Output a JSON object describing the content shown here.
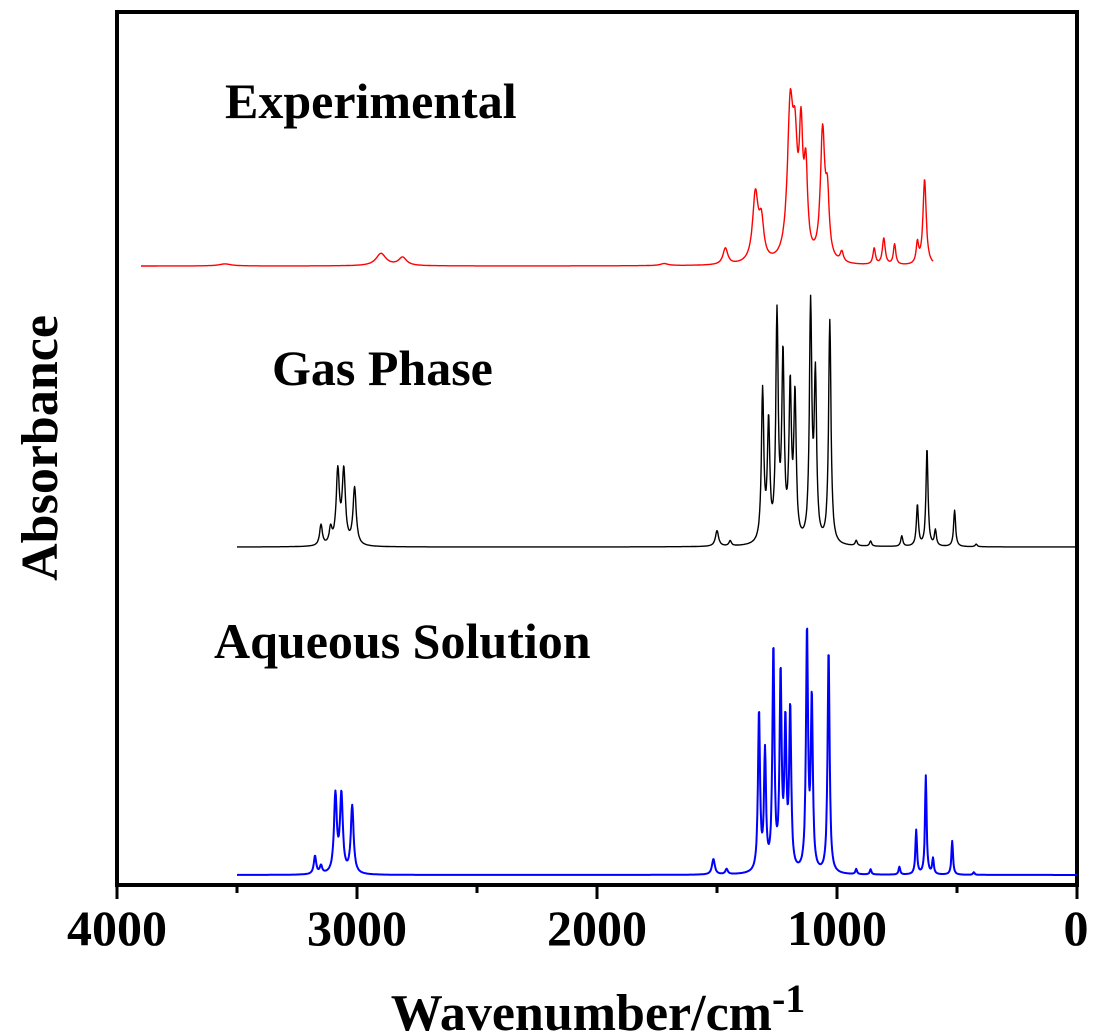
{
  "chart_data": {
    "type": "line",
    "xlabel": "Wavenumber/cm",
    "xlabel_superscript": "-1",
    "ylabel": "Absorbance",
    "xlim": [
      4000,
      0
    ],
    "x_reversed": true,
    "x_ticks": [
      4000,
      3000,
      2000,
      1000,
      0
    ],
    "x_tick_labels": [
      "4000",
      "3000",
      "2000",
      "1000",
      "0"
    ],
    "y_ticks_shown": false,
    "grid": false,
    "stacked_offset": true,
    "series": [
      {
        "name": "Experimental",
        "color": "#ff0000",
        "x_range": [
          3900,
          600
        ],
        "peaks": [
          {
            "x": 3550,
            "h": 0.01,
            "w": 30
          },
          {
            "x": 2900,
            "h": 0.06,
            "w": 25
          },
          {
            "x": 2810,
            "h": 0.04,
            "w": 20
          },
          {
            "x": 1720,
            "h": 0.01,
            "w": 20
          },
          {
            "x": 1465,
            "h": 0.08,
            "w": 12
          },
          {
            "x": 1340,
            "h": 0.33,
            "w": 14
          },
          {
            "x": 1315,
            "h": 0.18,
            "w": 12
          },
          {
            "x": 1195,
            "h": 0.7,
            "w": 14
          },
          {
            "x": 1175,
            "h": 0.45,
            "w": 12
          },
          {
            "x": 1150,
            "h": 0.55,
            "w": 9
          },
          {
            "x": 1130,
            "h": 0.4,
            "w": 9
          },
          {
            "x": 1060,
            "h": 0.62,
            "w": 11
          },
          {
            "x": 1040,
            "h": 0.28,
            "w": 9
          },
          {
            "x": 980,
            "h": 0.05,
            "w": 8
          },
          {
            "x": 845,
            "h": 0.08,
            "w": 6
          },
          {
            "x": 805,
            "h": 0.13,
            "w": 7
          },
          {
            "x": 760,
            "h": 0.1,
            "w": 6
          },
          {
            "x": 665,
            "h": 0.1,
            "w": 6
          },
          {
            "x": 635,
            "h": 0.42,
            "w": 8
          }
        ]
      },
      {
        "name": "Gas Phase",
        "color": "#000000",
        "x_range": [
          3500,
          0
        ],
        "peaks": [
          {
            "x": 3150,
            "h": 0.08,
            "w": 7
          },
          {
            "x": 3110,
            "h": 0.06,
            "w": 7
          },
          {
            "x": 3080,
            "h": 0.28,
            "w": 8
          },
          {
            "x": 3055,
            "h": 0.28,
            "w": 8
          },
          {
            "x": 3010,
            "h": 0.22,
            "w": 8
          },
          {
            "x": 1500,
            "h": 0.06,
            "w": 8
          },
          {
            "x": 1445,
            "h": 0.02,
            "w": 6
          },
          {
            "x": 1310,
            "h": 0.58,
            "w": 6
          },
          {
            "x": 1285,
            "h": 0.45,
            "w": 6
          },
          {
            "x": 1250,
            "h": 0.86,
            "w": 6
          },
          {
            "x": 1225,
            "h": 0.7,
            "w": 6
          },
          {
            "x": 1195,
            "h": 0.58,
            "w": 6
          },
          {
            "x": 1175,
            "h": 0.55,
            "w": 6
          },
          {
            "x": 1110,
            "h": 0.9,
            "w": 6
          },
          {
            "x": 1090,
            "h": 0.62,
            "w": 6
          },
          {
            "x": 1030,
            "h": 0.86,
            "w": 6
          },
          {
            "x": 920,
            "h": 0.02,
            "w": 5
          },
          {
            "x": 860,
            "h": 0.02,
            "w": 5
          },
          {
            "x": 730,
            "h": 0.04,
            "w": 5
          },
          {
            "x": 665,
            "h": 0.16,
            "w": 5
          },
          {
            "x": 625,
            "h": 0.38,
            "w": 5
          },
          {
            "x": 590,
            "h": 0.06,
            "w": 5
          },
          {
            "x": 510,
            "h": 0.14,
            "w": 5
          },
          {
            "x": 420,
            "h": 0.01,
            "w": 5
          }
        ]
      },
      {
        "name": "Aqueous Solution",
        "color": "#0000ff",
        "x_range": [
          3500,
          0
        ],
        "peaks": [
          {
            "x": 3175,
            "h": 0.07,
            "w": 6
          },
          {
            "x": 3150,
            "h": 0.03,
            "w": 6
          },
          {
            "x": 3090,
            "h": 0.3,
            "w": 7
          },
          {
            "x": 3065,
            "h": 0.3,
            "w": 7
          },
          {
            "x": 3020,
            "h": 0.26,
            "w": 7
          },
          {
            "x": 1515,
            "h": 0.06,
            "w": 7
          },
          {
            "x": 1460,
            "h": 0.02,
            "w": 6
          },
          {
            "x": 1325,
            "h": 0.62,
            "w": 5
          },
          {
            "x": 1300,
            "h": 0.45,
            "w": 5
          },
          {
            "x": 1265,
            "h": 0.86,
            "w": 5
          },
          {
            "x": 1235,
            "h": 0.75,
            "w": 5
          },
          {
            "x": 1215,
            "h": 0.55,
            "w": 5
          },
          {
            "x": 1195,
            "h": 0.62,
            "w": 5
          },
          {
            "x": 1125,
            "h": 0.93,
            "w": 5
          },
          {
            "x": 1105,
            "h": 0.66,
            "w": 5
          },
          {
            "x": 1035,
            "h": 0.87,
            "w": 5
          },
          {
            "x": 920,
            "h": 0.02,
            "w": 4
          },
          {
            "x": 860,
            "h": 0.02,
            "w": 4
          },
          {
            "x": 740,
            "h": 0.03,
            "w": 4
          },
          {
            "x": 670,
            "h": 0.17,
            "w": 4
          },
          {
            "x": 630,
            "h": 0.38,
            "w": 4
          },
          {
            "x": 600,
            "h": 0.06,
            "w": 4
          },
          {
            "x": 520,
            "h": 0.13,
            "w": 4
          },
          {
            "x": 430,
            "h": 0.01,
            "w": 4
          }
        ]
      }
    ]
  }
}
